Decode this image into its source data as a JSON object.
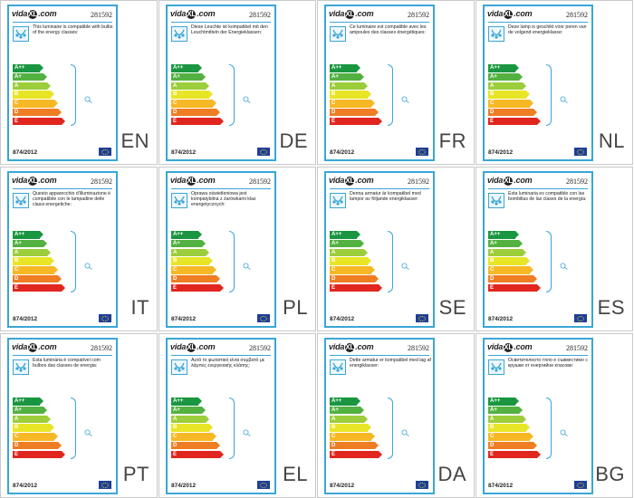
{
  "brand": "vida",
  "brand_mark": "XL",
  "brand_suffix": ".com",
  "product_code": "281592",
  "regulation": "874/2012",
  "energy_classes": [
    {
      "label": "A++",
      "color": "#1a9641"
    },
    {
      "label": "A+",
      "color": "#52b141"
    },
    {
      "label": "A",
      "color": "#9ccd3b"
    },
    {
      "label": "B",
      "color": "#e8e526"
    },
    {
      "label": "C",
      "color": "#f7b825"
    },
    {
      "label": "D",
      "color": "#ef7d23"
    },
    {
      "label": "E",
      "color": "#e0261e"
    }
  ],
  "labels": [
    {
      "lang": "EN",
      "text": "This luminaire is compatible with bulbs of the energy classes:"
    },
    {
      "lang": "DE",
      "text": "Diese Leuchte ist kompatibel mit den Leuchtmitteln der Energieklassen:"
    },
    {
      "lang": "FR",
      "text": "Ce luminaire est compatible avec les ampoules des classes énergétiques:"
    },
    {
      "lang": "NL",
      "text": "Deze lamp is geschikt voor peren van de volgend energieklasse:"
    },
    {
      "lang": "IT",
      "text": "Questo apparecchio d'illuminazione è compatibile con le lampadine delle classi energetiche:"
    },
    {
      "lang": "PL",
      "text": "Oprawa oświetleniowa jest kompatybilna z żarówkami klas energetycznych:"
    },
    {
      "lang": "SE",
      "text": "Denna armatur är kompatibel med lampor av följande energiklasser:"
    },
    {
      "lang": "ES",
      "text": "Esta luminaria es compatible con las bombillas de las clases de la energía:"
    },
    {
      "lang": "PT",
      "text": "Esta luminária é compatível com bulbos das classes de energia:"
    },
    {
      "lang": "EL",
      "text": "Αυτό το φωτιστικό είναι συμβατό με λάμπες ενεργειακής κλάσης:"
    },
    {
      "lang": "DA",
      "text": "Dette armatur er kompatibel med lag af energiklasser:"
    },
    {
      "lang": "BG",
      "text": "Осветителното тяло е съвместимо с крушки от енергийни класове:"
    }
  ]
}
